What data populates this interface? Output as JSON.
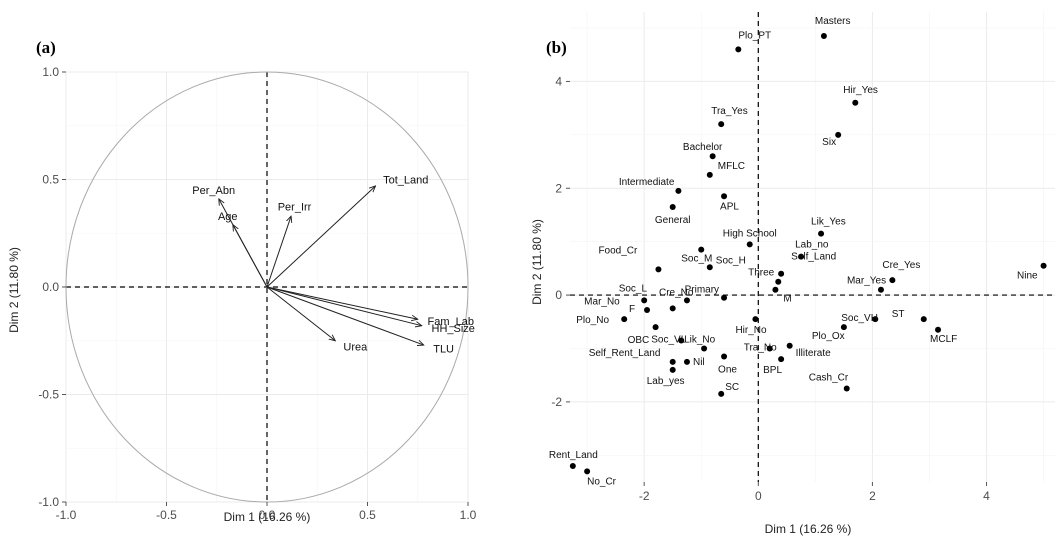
{
  "chart_data": [
    {
      "panel": "(a)",
      "type": "scatter",
      "subtype": "correlation-circle",
      "xlabel": "Dim 1 (16.26 %)",
      "ylabel": "Dim 2 (11.80 %)",
      "xlim": [
        -1.0,
        1.0
      ],
      "ylim": [
        -1.0,
        1.0
      ],
      "xticks": [
        "-1.0",
        "-0.5",
        "0.0",
        "0.5",
        "1.0"
      ],
      "yticks": [
        "-1.0",
        "-0.5",
        "0.0",
        "0.5",
        "1.0"
      ],
      "grid": true,
      "points": [
        {
          "label": "Per_Abn",
          "x": -0.24,
          "y": 0.41
        },
        {
          "label": "Age",
          "x": -0.17,
          "y": 0.29
        },
        {
          "label": "Per_Irr",
          "x": 0.12,
          "y": 0.33
        },
        {
          "label": "Tot_Land",
          "x": 0.54,
          "y": 0.47
        },
        {
          "label": "Fam_Lab",
          "x": 0.75,
          "y": -0.15
        },
        {
          "label": "HH_Size",
          "x": 0.77,
          "y": -0.18
        },
        {
          "label": "TLU",
          "x": 0.78,
          "y": -0.27
        },
        {
          "label": "Urea",
          "x": 0.34,
          "y": -0.25
        }
      ]
    },
    {
      "panel": "(b)",
      "type": "scatter",
      "xlabel": "Dim 1 (16.26 %)",
      "ylabel": "Dim 2 (11.80 %)",
      "xlim": [
        -3.3,
        5.2
      ],
      "ylim": [
        -3.5,
        5.3
      ],
      "xticks": [
        "-2",
        "0",
        "2",
        "4"
      ],
      "yticks": [
        "-2",
        "0",
        "2",
        "4"
      ],
      "grid": true,
      "points": [
        {
          "label": "Masters",
          "x": 1.15,
          "y": 4.85
        },
        {
          "label": "Plo_PT",
          "x": -0.35,
          "y": 4.6
        },
        {
          "label": "Hir_Yes",
          "x": 1.7,
          "y": 3.6
        },
        {
          "label": "Tra_Yes",
          "x": -0.65,
          "y": 3.2
        },
        {
          "label": "Six",
          "x": 1.4,
          "y": 3.0
        },
        {
          "label": "Bachelor",
          "x": -0.8,
          "y": 2.6
        },
        {
          "label": "MFLC",
          "x": -0.85,
          "y": 2.25
        },
        {
          "label": "Intermediate",
          "x": -1.4,
          "y": 1.95
        },
        {
          "label": "APL",
          "x": -0.6,
          "y": 1.85
        },
        {
          "label": "General",
          "x": -1.5,
          "y": 1.65
        },
        {
          "label": "Lik_Yes",
          "x": 1.1,
          "y": 1.15
        },
        {
          "label": "High School",
          "x": -0.15,
          "y": 0.95
        },
        {
          "label": "Lab_no",
          "x": 0.75,
          "y": 0.72
        },
        {
          "label": "Food_Cr",
          "x": -1.75,
          "y": 0.48
        },
        {
          "label": "Soc_M",
          "x": -1.0,
          "y": 0.85
        },
        {
          "label": "Soc_H",
          "x": -0.85,
          "y": 0.52
        },
        {
          "label": "Self_Land",
          "x": 0.4,
          "y": 0.4
        },
        {
          "label": "Cre_Yes",
          "x": 2.35,
          "y": 0.28
        },
        {
          "label": "Nine",
          "x": 5.0,
          "y": 0.55
        },
        {
          "label": "Soc_L",
          "x": -1.5,
          "y": -0.25
        },
        {
          "label": "Three",
          "x": 0.35,
          "y": 0.25
        },
        {
          "label": "Cre_No",
          "x": -1.25,
          "y": -0.1
        },
        {
          "label": "Primary",
          "x": -0.6,
          "y": -0.05
        },
        {
          "label": "Mar_No",
          "x": -2.0,
          "y": -0.1
        },
        {
          "label": "F",
          "x": -1.95,
          "y": -0.28
        },
        {
          "label": "M",
          "x": 0.3,
          "y": 0.1
        },
        {
          "label": "Mar_Yes",
          "x": 2.15,
          "y": 0.1
        },
        {
          "label": "ST",
          "x": 2.9,
          "y": -0.45
        },
        {
          "label": "Plo_No",
          "x": -2.35,
          "y": -0.45
        },
        {
          "label": "OBC",
          "x": -1.8,
          "y": -0.6
        },
        {
          "label": "Soc_VH",
          "x": 2.05,
          "y": -0.45
        },
        {
          "label": "MCLF",
          "x": 3.15,
          "y": -0.65
        },
        {
          "label": "Hir_No",
          "x": -0.05,
          "y": -0.45
        },
        {
          "label": "Plo_Ox",
          "x": 1.5,
          "y": -0.6
        },
        {
          "label": "Soc_VL",
          "x": -1.35,
          "y": -0.85
        },
        {
          "label": "Lik_No",
          "x": -0.95,
          "y": -1.0
        },
        {
          "label": "Nil",
          "x": -1.25,
          "y": -1.25
        },
        {
          "label": "One",
          "x": -0.6,
          "y": -1.15
        },
        {
          "label": "Tra_No",
          "x": 0.2,
          "y": -1.0
        },
        {
          "label": "Illiterate",
          "x": 0.55,
          "y": -0.95
        },
        {
          "label": "BPL",
          "x": 0.4,
          "y": -1.2
        },
        {
          "label": "Self_Rent_Land",
          "x": -1.5,
          "y": -1.25
        },
        {
          "label": "Lab_yes",
          "x": -1.5,
          "y": -1.4
        },
        {
          "label": "Cash_Cr",
          "x": 1.55,
          "y": -1.75
        },
        {
          "label": "SC",
          "x": -0.65,
          "y": -1.85
        },
        {
          "label": "Rent_Land",
          "x": -3.25,
          "y": -3.2
        },
        {
          "label": "No_Cr",
          "x": -3.0,
          "y": -3.3
        }
      ]
    }
  ]
}
